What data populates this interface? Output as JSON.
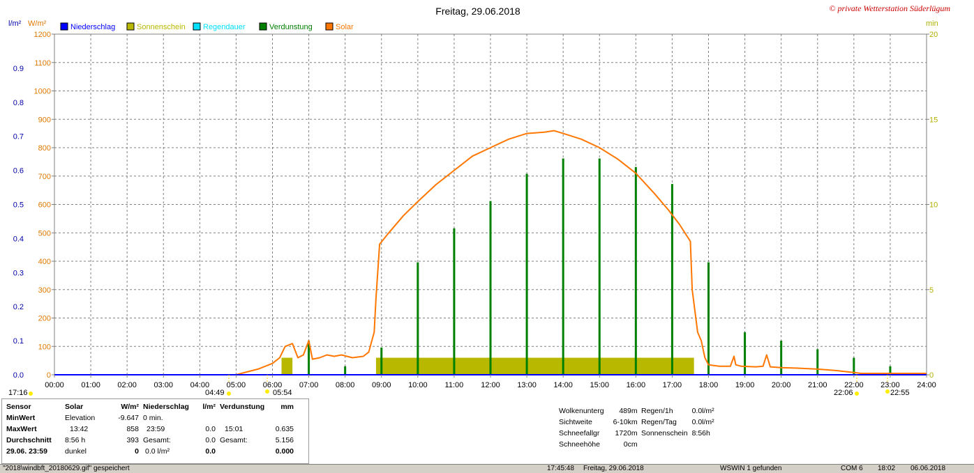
{
  "chart_data": {
    "type": "bar+line",
    "title": "Freitag, 29.06.2018",
    "copyright": "© private Wetterstation Süderlügum",
    "left_axis_precip": {
      "unit": "l/m²",
      "ylim": [
        0,
        1.0
      ],
      "ticks": [
        "0.0",
        "0.1",
        "0.2",
        "0.3",
        "0.4",
        "0.5",
        "0.6",
        "0.7",
        "0.8",
        "0.9"
      ],
      "color": "#0000aa"
    },
    "left_axis_solar": {
      "unit": "W/m²",
      "ylim": [
        0,
        1200
      ],
      "ticks": [
        "0",
        "100",
        "200",
        "300",
        "400",
        "500",
        "600",
        "700",
        "800",
        "900",
        "1000",
        "1100",
        "1200"
      ],
      "color": "#e07800"
    },
    "right_axis": {
      "unit": "min",
      "ylim": [
        0,
        20
      ],
      "ticks": [
        "0",
        "5",
        "10",
        "15",
        "20"
      ],
      "color": "#b0b000"
    },
    "x_axis": {
      "xlim": [
        0,
        24
      ],
      "ticks": [
        "00:00",
        "01:00",
        "02:00",
        "03:00",
        "04:00",
        "05:00",
        "06:00",
        "07:00",
        "08:00",
        "09:00",
        "10:00",
        "11:00",
        "12:00",
        "13:00",
        "14:00",
        "15:00",
        "16:00",
        "17:00",
        "18:00",
        "19:00",
        "20:00",
        "21:00",
        "22:00",
        "23:00",
        "24:00"
      ]
    },
    "legend": [
      {
        "name": "Niederschlag",
        "color": "#0000ff"
      },
      {
        "name": "Sonnenschein",
        "color": "#b8b800"
      },
      {
        "name": "Regendauer",
        "color": "#00e0ff"
      },
      {
        "name": "Verdunstung",
        "color": "#008000"
      },
      {
        "name": "Solar",
        "color": "#ff7700"
      }
    ],
    "legend_position": "top-left",
    "grid": true,
    "sun_markers": [
      "17:16",
      "04:49",
      "05:54",
      "22:06",
      "22:55"
    ],
    "sunshine": [
      {
        "start": 6.25,
        "end": 6.55,
        "minutes": 1
      },
      {
        "start": 8.85,
        "end": 17.6,
        "minutes": 1
      }
    ],
    "evaporation": [
      {
        "time": 7.0,
        "value": 0.1
      },
      {
        "time": 8.0,
        "value": 0.025
      },
      {
        "time": 9.0,
        "value": 0.08
      },
      {
        "time": 10.0,
        "value": 0.33
      },
      {
        "time": 11.0,
        "value": 0.43
      },
      {
        "time": 12.0,
        "value": 0.51
      },
      {
        "time": 13.0,
        "value": 0.59
      },
      {
        "time": 14.0,
        "value": 0.635
      },
      {
        "time": 15.0,
        "value": 0.635
      },
      {
        "time": 16.0,
        "value": 0.61
      },
      {
        "time": 17.0,
        "value": 0.56
      },
      {
        "time": 18.0,
        "value": 0.33
      },
      {
        "time": 19.0,
        "value": 0.125
      },
      {
        "time": 20.0,
        "value": 0.1
      },
      {
        "time": 21.0,
        "value": 0.075
      },
      {
        "time": 22.0,
        "value": 0.05
      },
      {
        "time": 23.0,
        "value": 0.025
      }
    ],
    "solar": {
      "x": [
        0,
        5.0,
        5.3,
        5.6,
        6.0,
        6.2,
        6.35,
        6.55,
        6.7,
        6.85,
        7.0,
        7.1,
        7.3,
        7.5,
        7.7,
        7.9,
        8.2,
        8.5,
        8.65,
        8.8,
        8.85,
        8.95,
        9.2,
        9.6,
        10.0,
        10.5,
        11.0,
        11.5,
        12.0,
        12.5,
        13.0,
        13.5,
        13.75,
        14.0,
        14.5,
        15.0,
        15.5,
        16.0,
        16.5,
        16.9,
        17.2,
        17.5,
        17.55,
        17.7,
        17.8,
        17.9,
        18.0,
        18.3,
        18.6,
        18.7,
        18.75,
        18.9,
        19.3,
        19.5,
        19.6,
        19.7,
        20.0,
        20.5,
        21.0,
        21.5,
        22.0,
        22.2,
        24.0
      ],
      "y": [
        0,
        0,
        10,
        20,
        40,
        60,
        100,
        110,
        60,
        70,
        120,
        55,
        60,
        70,
        65,
        70,
        60,
        65,
        80,
        150,
        270,
        460,
        500,
        560,
        610,
        670,
        720,
        770,
        800,
        830,
        850,
        855,
        860,
        850,
        830,
        800,
        760,
        710,
        640,
        580,
        530,
        470,
        300,
        150,
        120,
        60,
        35,
        30,
        30,
        65,
        35,
        30,
        28,
        30,
        70,
        28,
        25,
        23,
        20,
        15,
        8,
        5,
        5
      ]
    }
  },
  "stats": {
    "headers": [
      "Sensor",
      "Solar",
      "W/m²",
      "Niederschlag",
      "l/m²",
      "Verdunstung",
      "mm"
    ],
    "rows": [
      [
        "MinWert",
        "Elevation",
        "-9.647",
        "0 min.",
        "",
        "",
        ""
      ],
      [
        "MaxWert",
        "13:42",
        "858",
        "23:59",
        "0.0",
        "15:01",
        "0.635"
      ],
      [
        "Durchschnitt",
        "8:56 h",
        "393",
        "Gesamt:",
        "0.0",
        "Gesamt:",
        "5.156"
      ],
      [
        "29.06. 23:59",
        "dunkel",
        "0",
        "0.0 l/m²",
        "0.0",
        "",
        "0.000"
      ]
    ]
  },
  "weather": {
    "rows": [
      [
        "Wolkenunterg",
        "489m"
      ],
      [
        "Sichtweite",
        "6-10km"
      ],
      [
        "Schneefallgr",
        "1720m"
      ],
      [
        "Schneehöhe",
        "0cm"
      ]
    ]
  },
  "rain": {
    "rows": [
      [
        "Regen/1h",
        "0.0l/m²"
      ],
      [
        "Regen/Tag",
        "0.0l/m²"
      ],
      [
        "Sonnenschein",
        "8:56h"
      ]
    ]
  },
  "status": {
    "file": "\"2018\\windbft_20180629.gif\" gespeichert",
    "time": "17:45:48",
    "date": "Freitag, 29.06.2018",
    "found": "WSWIN 1 gefunden",
    "com": "COM 6",
    "clock": "18:02",
    "day": "06.06.2018"
  }
}
